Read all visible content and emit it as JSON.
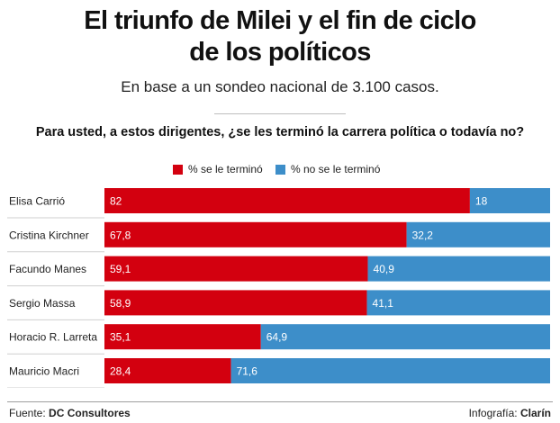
{
  "header": {
    "title_line1": "El triunfo de Milei y el fin de ciclo",
    "title_line2": "de los políticos",
    "subtitle": "En base a un sondeo nacional de 3.100 casos.",
    "question": "Para usted, a estos dirigentes, ¿se les terminó la carrera política o todavía no?"
  },
  "legend": {
    "red_label": "% se le terminó",
    "blue_label": "% no se le terminó"
  },
  "colors": {
    "red": "#d3000f",
    "blue": "#3d8ec9"
  },
  "chart_data": {
    "type": "bar",
    "orientation": "horizontal",
    "stacked": true,
    "categories": [
      "Elisa Carrió",
      "Cristina Kirchner",
      "Facundo Manes",
      "Sergio Massa",
      "Horacio R. Larreta",
      "Mauricio Macri"
    ],
    "series": [
      {
        "name": "% se le terminó",
        "values": [
          82,
          67.8,
          59.1,
          58.9,
          35.1,
          28.4
        ],
        "labels": [
          "82",
          "67,8",
          "59,1",
          "58,9",
          "35,1",
          "28,4"
        ]
      },
      {
        "name": "% no se le terminó",
        "values": [
          18,
          32.2,
          40.9,
          41.1,
          64.9,
          71.6
        ],
        "labels": [
          "18",
          "32,2",
          "40,9",
          "41,1",
          "64,9",
          "71,6"
        ]
      }
    ],
    "xlim": [
      0,
      100
    ]
  },
  "footer": {
    "source_prefix": "Fuente:",
    "source_name": "DC Consultores",
    "credit_prefix": "Infografía:",
    "credit_name": "Clarín"
  }
}
